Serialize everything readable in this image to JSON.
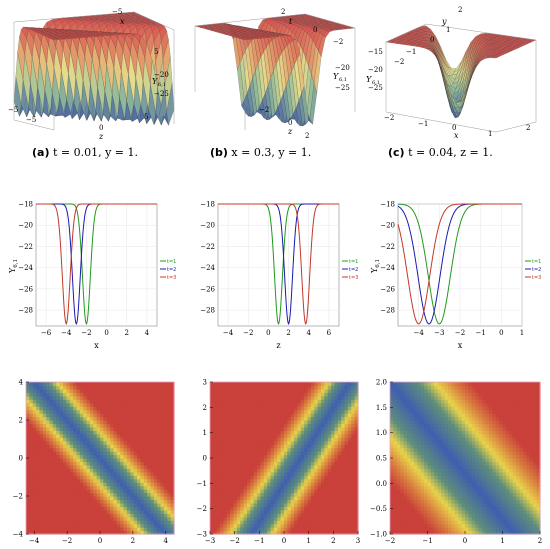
{
  "figure": {
    "colors": {
      "green": "#1f9a1f",
      "blue": "#1a1ab0",
      "red": "#c0392b",
      "surface_red": "#d9534f",
      "density_red": "#c9413a",
      "density_blue": "#3e5fb0",
      "density_yellow": "#e9d34a",
      "frame_pink": "#e8a0c8"
    },
    "row1": [
      {
        "caption_tag": "(a)",
        "caption_text": " t = 0.01, y = 1.",
        "labels": {
          "x": "x",
          "z": "z",
          "u": "Y",
          "u_sub": "6,1"
        },
        "ticks_top": [
          "−5",
          "0",
          "5"
        ],
        "ticks_right": [
          "−20",
          "−25"
        ],
        "ticks_bottom": [
          "−5",
          "0",
          "5"
        ],
        "ticks_vert": [
          "−5",
          "0",
          "5"
        ]
      },
      {
        "caption_tag": "(b)",
        "caption_text": " x = 0.3, y = 1.",
        "labels": {
          "t": "t",
          "z": "z",
          "u": "Y",
          "u_sub": "6,1"
        },
        "ticks_top": [
          "2",
          "0",
          "−2"
        ],
        "ticks_right": [
          "−20",
          "−25"
        ],
        "ticks_bottom": [
          "−2",
          "0",
          "2"
        ],
        "ticks_vert": [
          "−20"
        ]
      },
      {
        "caption_tag": "(c)",
        "caption_text": " t = 0.04, z = 1.",
        "labels": {
          "x": "x",
          "y": "y",
          "u": "Y",
          "u_sub": "6,1"
        },
        "ticks_top": [
          "2",
          "1",
          "0"
        ],
        "ticks_left": [
          "−15",
          "−20",
          "−25"
        ],
        "ticks_bottom": [
          "−2",
          "−1",
          "0",
          "1",
          "2"
        ],
        "ticks_vert": [
          "−1",
          "−2"
        ]
      }
    ]
  },
  "chart_data": [
    {
      "type": "line",
      "xlabel": "x",
      "ylabel": "Y",
      "ylabel_sub": "6,1",
      "xlim": [
        -7,
        5
      ],
      "ylim": [
        -29.5,
        -18
      ],
      "xticks": [
        -6,
        -4,
        -2,
        0,
        2,
        4
      ],
      "yticks": [
        -28,
        -26,
        -24,
        -22,
        -20,
        -18
      ],
      "legend": [
        "t=1",
        "t=2",
        "t=3"
      ],
      "series": [
        {
          "color": "green",
          "center": -2,
          "width": 0.55
        },
        {
          "color": "blue",
          "center": -3,
          "width": 0.55
        },
        {
          "color": "red",
          "center": -4,
          "width": 0.55
        }
      ],
      "baseline": -18,
      "min": -29.3
    },
    {
      "type": "line",
      "xlabel": "z",
      "ylabel": "",
      "ylabel_sub": "",
      "xlim": [
        -5,
        7
      ],
      "ylim": [
        -29.5,
        -18
      ],
      "xticks": [
        -4,
        -2,
        0,
        2,
        4,
        6
      ],
      "yticks": [
        -28,
        -26,
        -24,
        -22,
        -20,
        -18
      ],
      "legend": [
        "t=1",
        "t=2",
        "t=3"
      ],
      "series": [
        {
          "color": "green",
          "center": 1,
          "width": 0.55
        },
        {
          "color": "blue",
          "center": 2,
          "width": 0.55
        },
        {
          "color": "red",
          "center": 3.7,
          "width": 0.55
        }
      ],
      "baseline": -18,
      "min": -29.3
    },
    {
      "type": "line",
      "xlabel": "x",
      "ylabel": "Y",
      "ylabel_sub": "6,1",
      "xlim": [
        -5,
        1
      ],
      "ylim": [
        -29.5,
        -18
      ],
      "xticks": [
        -4,
        -3,
        -2,
        -1,
        0,
        1
      ],
      "yticks": [
        -28,
        -26,
        -24,
        -22,
        -20,
        -18
      ],
      "legend": [
        "t=1",
        "t=2",
        "t=3"
      ],
      "series": [
        {
          "color": "green",
          "center": -3,
          "width": 0.75
        },
        {
          "color": "blue",
          "center": -3.5,
          "width": 0.75
        },
        {
          "color": "red",
          "center": -4,
          "width": 0.75
        }
      ],
      "baseline": -18,
      "min": -29.3
    },
    {
      "type": "heatmap",
      "xlim": [
        -4.5,
        4.5
      ],
      "ylim": [
        -4,
        4
      ],
      "xticks": [
        -4,
        -2,
        0,
        2,
        4
      ],
      "yticks": [
        -4,
        -2,
        0,
        2,
        4
      ],
      "band": {
        "slope": -1,
        "intercept": 0,
        "width": 1.1
      }
    },
    {
      "type": "heatmap",
      "xlim": [
        -3,
        3
      ],
      "ylim": [
        -3,
        3
      ],
      "xticks": [
        -3,
        -2,
        -1,
        0,
        1,
        2,
        3
      ],
      "yticks": [
        -3,
        -2,
        -1,
        0,
        1,
        2,
        3
      ],
      "band": {
        "slope": 1.5,
        "intercept": -1,
        "width": 0.8
      }
    },
    {
      "type": "heatmap",
      "xlim": [
        -2,
        2
      ],
      "ylim": [
        -1,
        2
      ],
      "xticks": [
        -2,
        -1,
        0,
        1,
        2
      ],
      "yticks": [
        -1.0,
        -0.5,
        0.0,
        0.5,
        1.0,
        1.5,
        2.0
      ],
      "band": {
        "slope": -0.9,
        "intercept": 0.2,
        "width": 0.9
      }
    }
  ]
}
